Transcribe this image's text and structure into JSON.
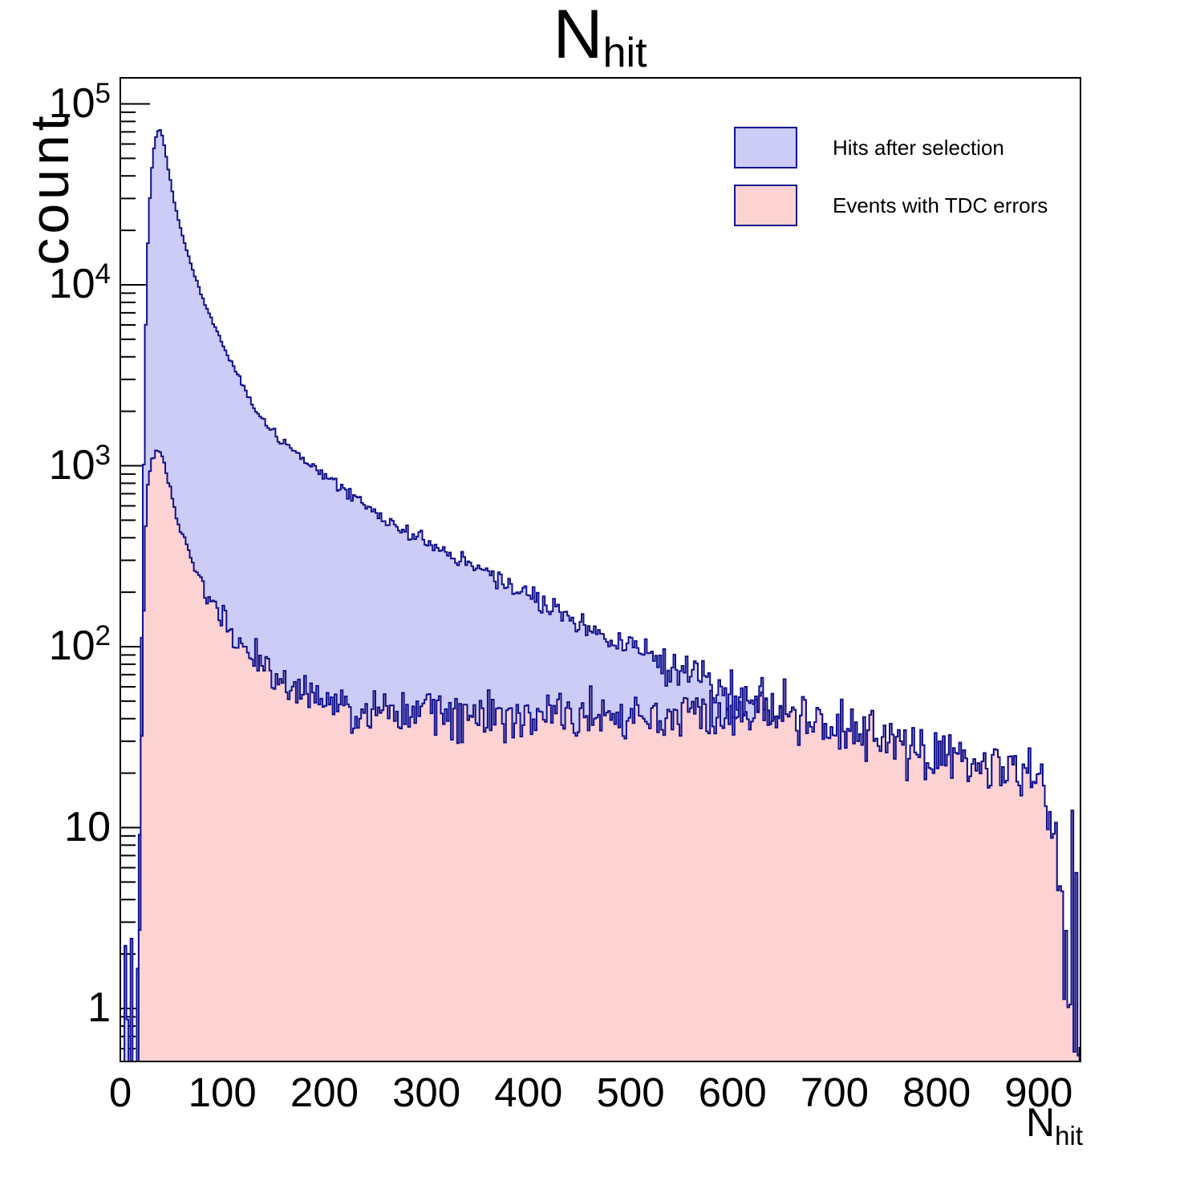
{
  "title": {
    "main": "N",
    "sub": "hit"
  },
  "y_axis": {
    "title": "count",
    "labels": [
      {
        "value": 100000,
        "base": "10",
        "exp": "5"
      },
      {
        "value": 10000,
        "base": "10",
        "exp": "4"
      },
      {
        "value": 1000,
        "base": "10",
        "exp": "3"
      },
      {
        "value": 100,
        "base": "10",
        "exp": "2"
      },
      {
        "value": 10,
        "base": "10",
        "exp": ""
      },
      {
        "value": 1,
        "base": "1",
        "exp": ""
      }
    ]
  },
  "x_axis": {
    "title_main": "N",
    "title_sub": "hit",
    "major_ticks": [
      0,
      100,
      200,
      300,
      400,
      500,
      600,
      700,
      800,
      900
    ],
    "minor_step": 20
  },
  "legend": {
    "items": [
      {
        "label": "Hits after selection",
        "swatch": "#ccccf7"
      },
      {
        "label": "Events with TDC errors",
        "swatch": "#fcd2d2"
      }
    ]
  },
  "colors": {
    "outline": "#11118c",
    "blue_fill": "#ccccf7",
    "pink_fill": "#fcd2d2",
    "axis": "#000000",
    "background": "#ffffff"
  },
  "chart_data": {
    "type": "area",
    "subtype": "overlaid step histograms",
    "title": "N_hit",
    "xlabel": "N_hit",
    "ylabel": "count",
    "y_scale": "log",
    "x_range": [
      0,
      941
    ],
    "y_range": [
      0.5,
      140000
    ],
    "bin_width": 2,
    "grid": false,
    "legend_position": "top-right",
    "series": [
      {
        "name": "Hits after selection",
        "peak": {
          "x": 38,
          "y": 72500
        },
        "anchors": [
          [
            3,
            0.05
          ],
          [
            5,
            0.9
          ],
          [
            7,
            0.1
          ],
          [
            9,
            0.08
          ],
          [
            11,
            1.2
          ],
          [
            13,
            0.15
          ],
          [
            15,
            0.7
          ],
          [
            16,
            1.4
          ],
          [
            17,
            2.6
          ],
          [
            18,
            5.5
          ],
          [
            19,
            13
          ],
          [
            20,
            35
          ],
          [
            21,
            110
          ],
          [
            22,
            350
          ],
          [
            23,
            1000
          ],
          [
            24,
            2600
          ],
          [
            25,
            6000
          ],
          [
            26,
            11000
          ],
          [
            27,
            17000
          ],
          [
            28,
            24000
          ],
          [
            30,
            38000
          ],
          [
            32,
            52000
          ],
          [
            34,
            62500
          ],
          [
            36,
            69000
          ],
          [
            38,
            72500
          ],
          [
            40,
            70000
          ],
          [
            42,
            63500
          ],
          [
            44,
            55000
          ],
          [
            46,
            47000
          ],
          [
            48,
            40500
          ],
          [
            50,
            35000
          ],
          [
            53,
            28500
          ],
          [
            56,
            24000
          ],
          [
            60,
            19500
          ],
          [
            64,
            16200
          ],
          [
            68,
            13600
          ],
          [
            72,
            11600
          ],
          [
            76,
            10000
          ],
          [
            80,
            8700
          ],
          [
            85,
            7350
          ],
          [
            90,
            6300
          ],
          [
            95,
            5450
          ],
          [
            100,
            4750
          ],
          [
            105,
            4150
          ],
          [
            110,
            3620
          ],
          [
            115,
            3170
          ],
          [
            120,
            2800
          ],
          [
            126,
            2400
          ],
          [
            132,
            2090
          ],
          [
            138,
            1850
          ],
          [
            145,
            1650
          ],
          [
            152,
            1490
          ],
          [
            160,
            1350
          ],
          [
            170,
            1200
          ],
          [
            180,
            1080
          ],
          [
            190,
            970
          ],
          [
            200,
            880
          ],
          [
            212,
            785
          ],
          [
            224,
            700
          ],
          [
            236,
            630
          ],
          [
            250,
            555
          ],
          [
            265,
            490
          ],
          [
            280,
            435
          ],
          [
            295,
            390
          ],
          [
            310,
            350
          ],
          [
            325,
            315
          ],
          [
            340,
            285
          ],
          [
            355,
            258
          ],
          [
            370,
            233
          ],
          [
            385,
            210
          ],
          [
            400,
            190
          ],
          [
            415,
            172
          ],
          [
            430,
            155
          ],
          [
            445,
            141
          ],
          [
            460,
            128
          ],
          [
            475,
            116
          ],
          [
            490,
            106
          ],
          [
            505,
            97
          ],
          [
            520,
            88
          ],
          [
            535,
            81
          ],
          [
            550,
            74
          ],
          [
            565,
            68
          ],
          [
            580,
            62
          ],
          [
            595,
            57
          ],
          [
            610,
            53
          ],
          [
            625,
            50
          ],
          [
            640,
            47
          ],
          [
            655,
            44
          ],
          [
            670,
            41
          ],
          [
            685,
            38.5
          ],
          [
            700,
            36.5
          ],
          [
            720,
            34
          ],
          [
            740,
            31.5
          ],
          [
            760,
            29.5
          ],
          [
            780,
            27.5
          ],
          [
            800,
            26
          ],
          [
            820,
            24.5
          ],
          [
            840,
            23
          ],
          [
            860,
            21.5
          ],
          [
            880,
            20.5
          ],
          [
            895,
            19.5
          ],
          [
            905,
            17
          ],
          [
            910,
            14
          ],
          [
            915,
            10
          ],
          [
            918,
            7
          ],
          [
            921,
            4.5
          ],
          [
            924,
            3
          ],
          [
            927,
            2
          ],
          [
            930,
            1.4
          ],
          [
            933,
            1.0
          ],
          [
            936,
            0.75
          ],
          [
            939,
            0.6
          ],
          [
            941,
            0.5
          ]
        ]
      },
      {
        "name": "Events with TDC errors",
        "peak": {
          "x": 38,
          "y": 1210
        },
        "merge_with_first_from_x": 648,
        "anchors": [
          [
            15,
            0.05
          ],
          [
            17,
            0.4
          ],
          [
            18,
            1.2
          ],
          [
            19,
            3.5
          ],
          [
            20,
            9
          ],
          [
            21,
            25
          ],
          [
            22,
            70
          ],
          [
            23,
            160
          ],
          [
            24,
            310
          ],
          [
            25,
            480
          ],
          [
            26,
            640
          ],
          [
            28,
            860
          ],
          [
            30,
            1010
          ],
          [
            33,
            1130
          ],
          [
            36,
            1195
          ],
          [
            38,
            1210
          ],
          [
            40,
            1175
          ],
          [
            42,
            1080
          ],
          [
            44,
            960
          ],
          [
            46,
            855
          ],
          [
            48,
            760
          ],
          [
            50,
            680
          ],
          [
            53,
            580
          ],
          [
            56,
            500
          ],
          [
            60,
            425
          ],
          [
            64,
            365
          ],
          [
            68,
            318
          ],
          [
            72,
            280
          ],
          [
            76,
            249
          ],
          [
            80,
            224
          ],
          [
            85,
            197
          ],
          [
            90,
            176
          ],
          [
            95,
            158
          ],
          [
            100,
            143
          ],
          [
            105,
            130
          ],
          [
            110,
            119
          ],
          [
            115,
            109
          ],
          [
            120,
            100
          ],
          [
            126,
            91
          ],
          [
            132,
            84
          ],
          [
            138,
            78
          ],
          [
            145,
            72
          ],
          [
            152,
            67
          ],
          [
            160,
            62
          ],
          [
            170,
            57.5
          ],
          [
            180,
            54
          ],
          [
            190,
            51
          ],
          [
            200,
            48.5
          ],
          [
            215,
            46.5
          ],
          [
            230,
            45
          ],
          [
            245,
            44
          ],
          [
            260,
            43.2
          ],
          [
            280,
            42.5
          ],
          [
            300,
            42
          ],
          [
            330,
            41.5
          ],
          [
            360,
            41
          ],
          [
            400,
            40.8
          ],
          [
            440,
            40.6
          ],
          [
            480,
            40.4
          ],
          [
            520,
            40.2
          ],
          [
            560,
            40.5
          ],
          [
            600,
            41.5
          ],
          [
            620,
            43.5
          ],
          [
            648,
            47
          ]
        ]
      }
    ]
  }
}
